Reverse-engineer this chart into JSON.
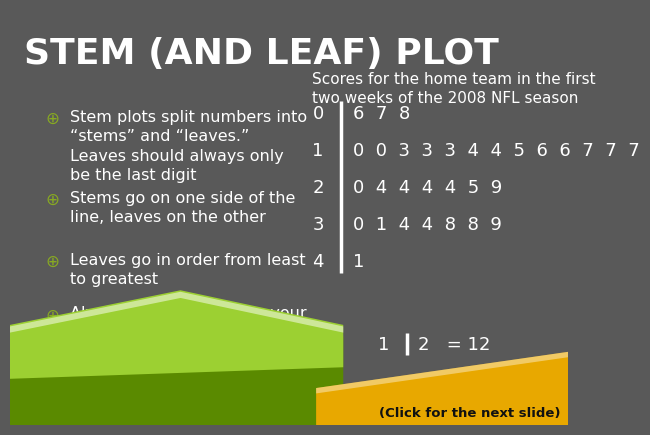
{
  "title": "STEM (AND LEAF) PLOT",
  "bg_color": "#595959",
  "title_color": "#ffffff",
  "title_fontsize": 26,
  "text_color": "#ffffff",
  "bullet_marker_color": "#88aa22",
  "bullets": [
    "Stem plots split numbers into\n“stems” and “leaves.”\nLeaves should always only\nbe the last digit",
    "Stems go on one side of the\nline, leaves on the other",
    "Leaves go in order from least\nto greatest",
    "Always include a key for your\nstem plot"
  ],
  "subtitle": "Scores for the home team in the first\ntwo weeks of the 2008 NFL season",
  "stem_data": [
    {
      "stem": "0",
      "leaves": "6  7  8"
    },
    {
      "stem": "1",
      "leaves": "0  0  3  3  3  4  4  5  6  6  7  7  7"
    },
    {
      "stem": "2",
      "leaves": "0  4  4  4  4  5  9"
    },
    {
      "stem": "3",
      "leaves": "0  1  4  4  8  8  9"
    },
    {
      "stem": "4",
      "leaves": "1"
    }
  ],
  "click_text": "(Click for the next slide)"
}
